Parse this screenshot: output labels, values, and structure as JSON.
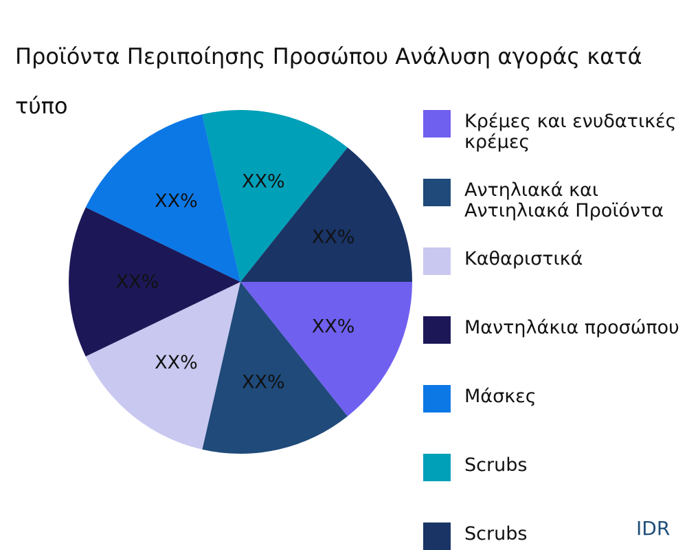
{
  "chart_data": {
    "type": "pie",
    "title_lines": [
      "Προϊόντα Περιποίησης Προσώπου Ανάλυση αγοράς κατά",
      "τύπο"
    ],
    "slice_label": "XX%",
    "slices": [
      {
        "label_lines": [
          "Κρέμες και ενυδατικές",
          "κρέμες"
        ],
        "value": 1,
        "color": "#7060f0"
      },
      {
        "label_lines": [
          "Αντηλιακά και",
          "Αντιηλιακά Προϊόντα"
        ],
        "value": 1,
        "color": "#1f4a7a"
      },
      {
        "label_lines": [
          "Καθαριστικά"
        ],
        "value": 1,
        "color": "#c8c8f0"
      },
      {
        "label_lines": [
          "Μαντηλάκια προσώπου"
        ],
        "value": 1,
        "color": "#1c1858"
      },
      {
        "label_lines": [
          "Μάσκες"
        ],
        "value": 1,
        "color": "#0c78e6"
      },
      {
        "label_lines": [
          "Scrubs"
        ],
        "value": 1,
        "color": "#00a0b8"
      },
      {
        "label_lines": [
          "Scrubs"
        ],
        "value": 1,
        "color": "#1a3466"
      }
    ],
    "legend_position": "right",
    "start_angle_deg": 0,
    "direction": "clockwise"
  },
  "brand": "IDR"
}
